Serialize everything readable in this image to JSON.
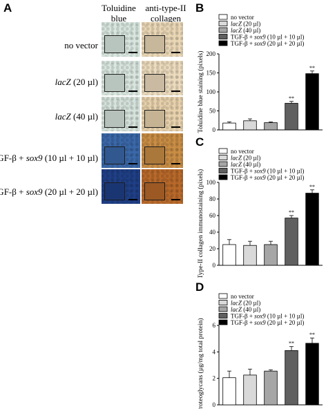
{
  "panel_labels": {
    "a": "A",
    "b": "B",
    "c": "C",
    "d": "D"
  },
  "column_headers": [
    "Toluidine blue",
    "anti-type-II collagen"
  ],
  "rows": [
    {
      "prefix": "no vector",
      "gene": "",
      "suffix": ""
    },
    {
      "prefix": "",
      "gene": "lacZ",
      "suffix": " (20 µl)"
    },
    {
      "prefix": "",
      "gene": "lacZ",
      "suffix": " (40 µl)"
    },
    {
      "prefix": "TGF-β + ",
      "gene": "sox9",
      "suffix": " (10 µl + 10 µl)"
    },
    {
      "prefix": "TGF-β + ",
      "gene": "sox9",
      "suffix": " (20 µl + 20 µl)"
    }
  ],
  "stain_colors": {
    "toluidine": [
      "#d8e6df",
      "#d9e6df",
      "#d6e3dc",
      "#3a68a8",
      "#1f3f86"
    ],
    "collagen": [
      "#ead7b6",
      "#ecdbbd",
      "#e8d2ad",
      "#c98d45",
      "#b8692a"
    ]
  },
  "legend": [
    {
      "prefix": "no vector",
      "gene": "",
      "suffix": "",
      "color": "#ffffff"
    },
    {
      "prefix": "",
      "gene": "lacZ",
      "suffix": " (20 µl)",
      "color": "#d9d9d9"
    },
    {
      "prefix": "",
      "gene": "lacZ",
      "suffix": " (40 µl)",
      "color": "#a6a6a6"
    },
    {
      "prefix": "TGF-β + ",
      "gene": "sox9",
      "suffix": " (10 µl + 10 µl)",
      "color": "#606060"
    },
    {
      "prefix": "TGF-β + ",
      "gene": "sox9",
      "suffix": " (20 µl + 20 µl)",
      "color": "#000000"
    }
  ],
  "chart_data": [
    {
      "type": "bar",
      "panel": "B",
      "ylabel": "Toluidine blue staining (pixels)",
      "ylim": [
        0,
        200
      ],
      "yticks": [
        0,
        50,
        100,
        150,
        200
      ],
      "values": [
        18,
        24,
        19,
        70,
        148
      ],
      "errors": [
        3,
        5,
        2,
        5,
        7
      ],
      "annotations": [
        "",
        "",
        "",
        "**",
        "**"
      ]
    },
    {
      "type": "bar",
      "panel": "C",
      "ylabel": "Type-II collagen immunostaining (pixels)",
      "ylim": [
        0,
        100
      ],
      "yticks": [
        0,
        20,
        40,
        60,
        80,
        100
      ],
      "values": [
        25,
        24,
        25,
        57,
        87
      ],
      "errors": [
        6,
        5,
        4,
        3,
        4
      ],
      "annotations": [
        "",
        "",
        "",
        "**",
        "**"
      ]
    },
    {
      "type": "bar",
      "panel": "D",
      "ylabel": "Proteoglycans (µg/mg total protein)",
      "ylim": [
        0,
        6
      ],
      "yticks": [
        0,
        2,
        4,
        6
      ],
      "values": [
        2.05,
        2.25,
        2.55,
        4.1,
        4.65
      ],
      "errors": [
        0.5,
        0.45,
        0.1,
        0.3,
        0.4
      ],
      "annotations": [
        "",
        "",
        "",
        "**",
        "**"
      ]
    }
  ]
}
